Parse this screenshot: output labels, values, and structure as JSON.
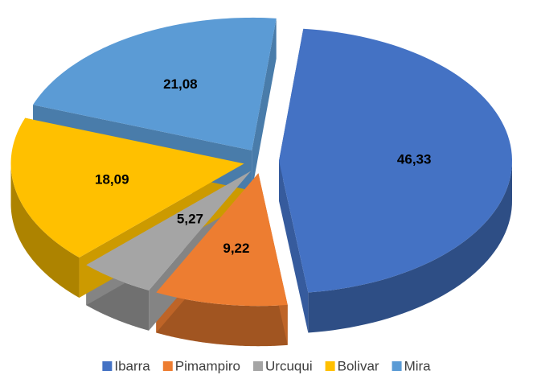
{
  "chart_data": {
    "type": "pie3d",
    "categories": [
      "Ibarra",
      "Pimampiro",
      "Urcuqui",
      "Bolivar",
      "Mira"
    ],
    "values": [
      46.33,
      9.22,
      5.27,
      18.09,
      21.08
    ],
    "value_labels": [
      "46,33",
      "9,22",
      "5,27",
      "18,09",
      "21,08"
    ],
    "colors": [
      "#4472c4",
      "#ed7d31",
      "#a5a5a5",
      "#ffc000",
      "#5b9bd5"
    ],
    "legend": "bottom"
  }
}
